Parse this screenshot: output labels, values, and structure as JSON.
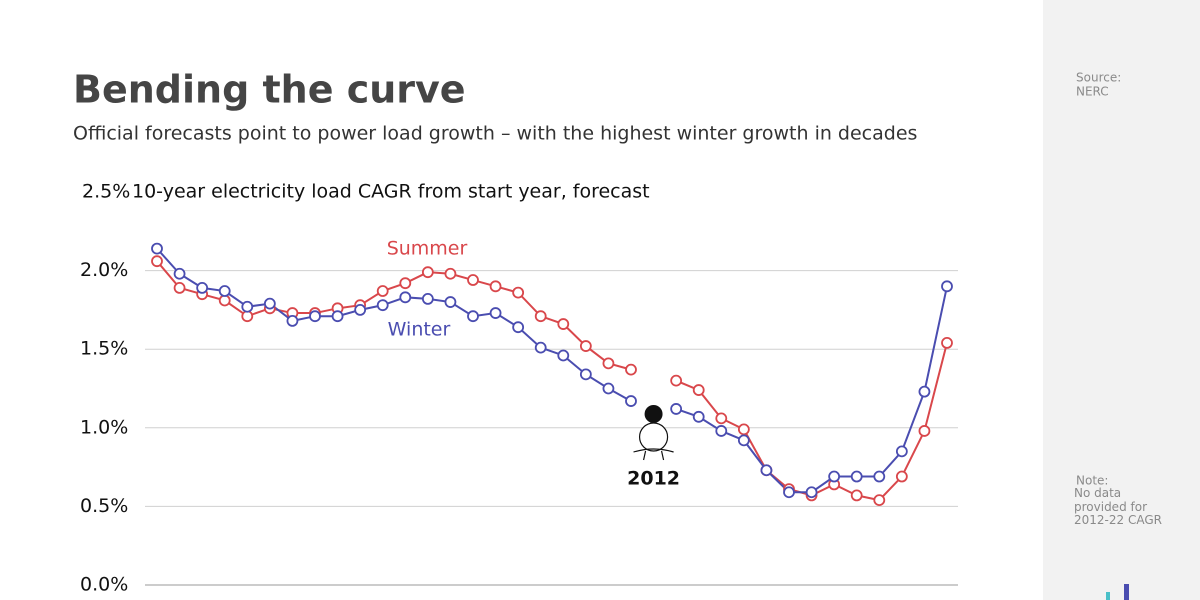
{
  "chart_data": {
    "type": "line",
    "title": "Bending the curve",
    "subtitle": "Official forecasts point to power load growth – with the highest winter growth in decades",
    "y_label": "10-year electricity load CAGR from start year, forecast",
    "categories": [
      null,
      null,
      null,
      null,
      null,
      null,
      null,
      null,
      null,
      null,
      null,
      null,
      null,
      null,
      null,
      null,
      null,
      null,
      null,
      null,
      null,
      null,
      null,
      null,
      null,
      null,
      null,
      null,
      null,
      null,
      null,
      null,
      null,
      null,
      null,
      null
    ],
    "series": [
      {
        "name": "Summer",
        "color": "#d9474b",
        "values": [
          2.06,
          1.89,
          1.85,
          1.81,
          1.71,
          1.76,
          1.73,
          1.73,
          1.76,
          1.78,
          1.87,
          1.92,
          1.99,
          1.98,
          1.94,
          1.9,
          1.86,
          1.71,
          1.66,
          1.52,
          1.41,
          1.37,
          null,
          1.3,
          1.24,
          1.06,
          0.99,
          0.73,
          0.61,
          0.57,
          0.64,
          0.57,
          0.54,
          0.69,
          0.98,
          1.54
        ]
      },
      {
        "name": "Winter",
        "color": "#4a4db0",
        "values": [
          2.14,
          1.98,
          1.89,
          1.87,
          1.77,
          1.79,
          1.68,
          1.71,
          1.71,
          1.75,
          1.78,
          1.83,
          1.82,
          1.8,
          1.71,
          1.73,
          1.64,
          1.51,
          1.46,
          1.34,
          1.25,
          1.17,
          null,
          1.12,
          1.07,
          0.98,
          0.92,
          0.73,
          0.59,
          0.59,
          0.69,
          0.69,
          0.69,
          0.85,
          1.23,
          1.9
        ]
      }
    ],
    "ylim": [
      0,
      2.5
    ],
    "yticks": [
      {
        "value": 0,
        "label": "0.0%"
      },
      {
        "value": 0.5,
        "label": "0.5%"
      },
      {
        "value": 1,
        "label": "1.0%"
      },
      {
        "value": 1.5,
        "label": "1.5%"
      },
      {
        "value": 2,
        "label": "2.0%"
      },
      {
        "value": 2.5,
        "label": "2.5%"
      }
    ],
    "grid": true,
    "annotation": {
      "text": "2012",
      "index": 22
    },
    "source_label": "Source:",
    "source": "NERC",
    "note_label": "Note:",
    "note": "No data provided for 2012-22 CAGR"
  }
}
